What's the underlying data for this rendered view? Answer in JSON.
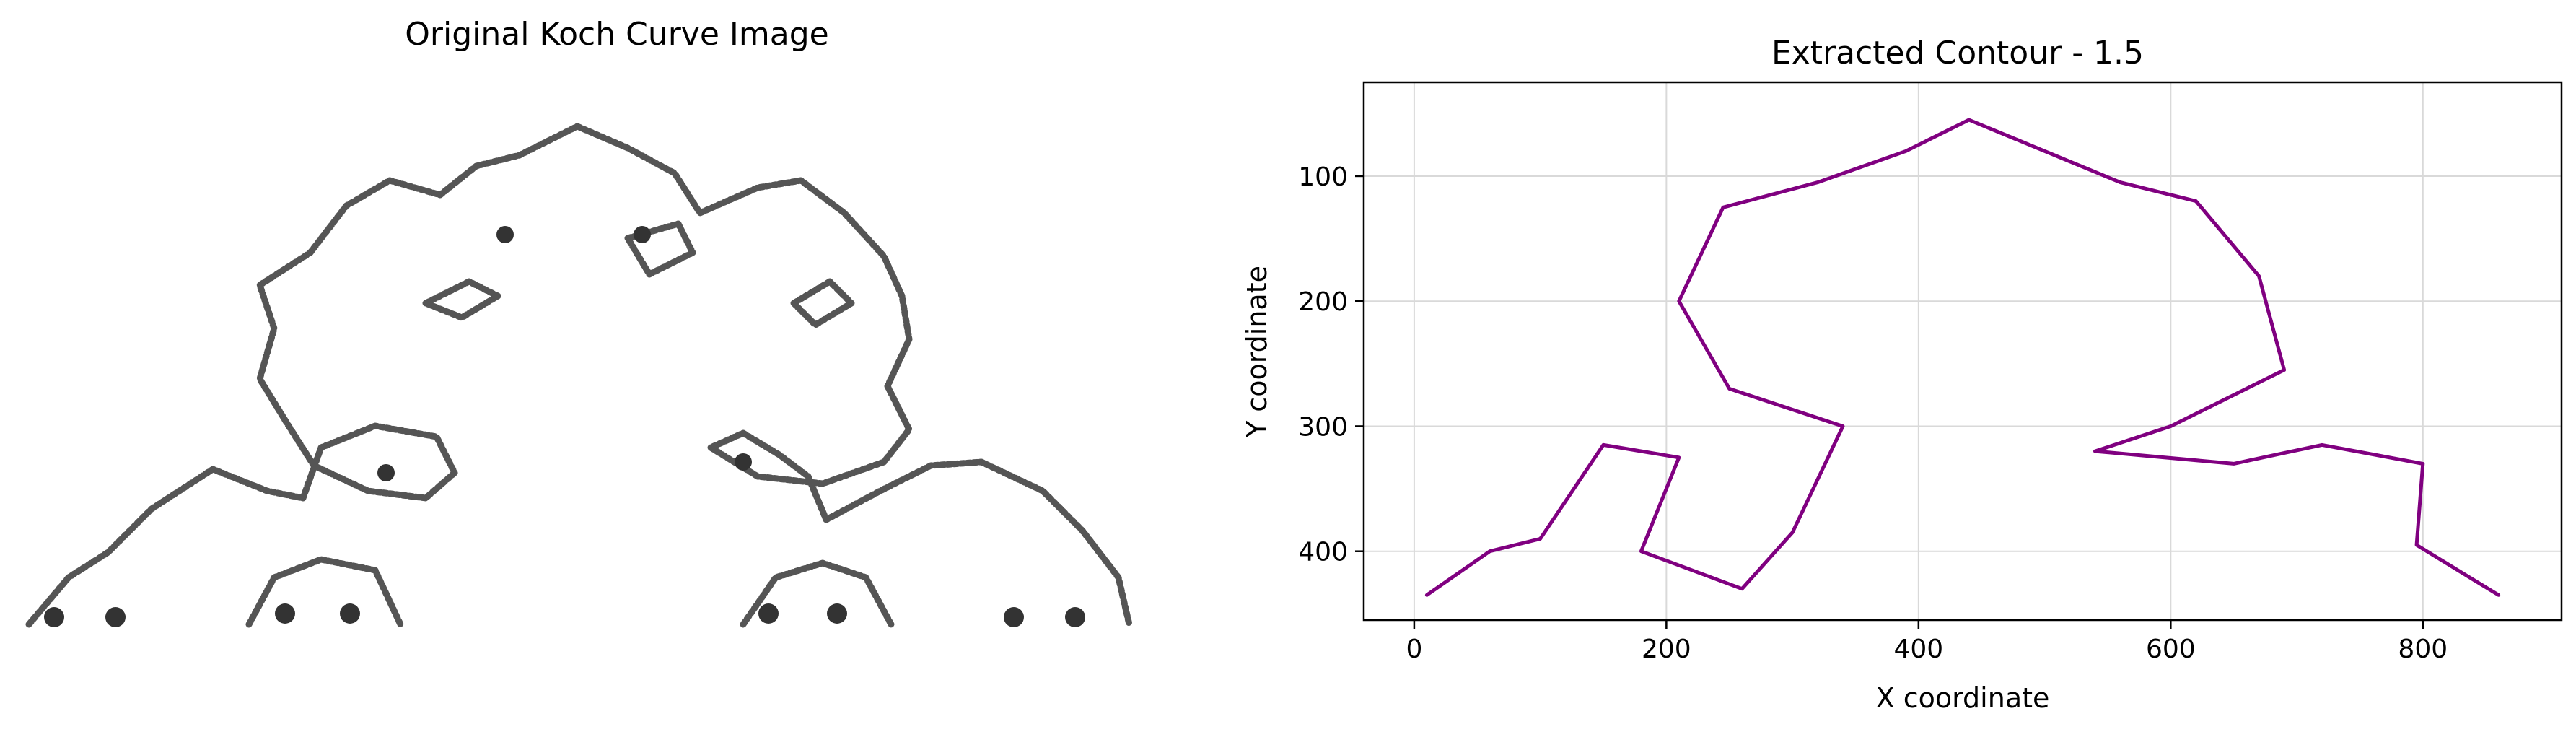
{
  "figure": {
    "left_panel": {
      "title": "Original Koch Curve Image",
      "image": "fractal-curve-image"
    },
    "right_panel": {
      "title": "Extracted Contour - 1.5"
    }
  },
  "chart_data": [
    {
      "type": "line",
      "title": "Extracted Contour - 1.5",
      "xlabel": "X coordinate",
      "ylabel": "Y coordinate",
      "xlim": [
        -40,
        910
      ],
      "ylim": [
        455,
        25
      ],
      "y_inverted": true,
      "xticks": [
        0,
        200,
        400,
        600,
        800
      ],
      "yticks": [
        100,
        200,
        300,
        400
      ],
      "grid": true,
      "legend": "none",
      "line_color": "#800080",
      "series": [
        {
          "points": [
            [
              10,
              435
            ],
            [
              60,
              400
            ],
            [
              100,
              390
            ],
            [
              150,
              315
            ],
            [
              210,
              325
            ],
            [
              180,
              400
            ],
            [
              260,
              430
            ],
            [
              300,
              385
            ],
            [
              340,
              300
            ],
            [
              250,
              270
            ],
            [
              210,
              200
            ],
            [
              245,
              125
            ],
            [
              320,
              105
            ],
            [
              390,
              80
            ],
            [
              440,
              55
            ],
            [
              500,
              80
            ],
            [
              560,
              105
            ],
            [
              620,
              120
            ],
            [
              670,
              180
            ],
            [
              690,
              255
            ],
            [
              600,
              300
            ],
            [
              540,
              320
            ],
            [
              650,
              330
            ],
            [
              720,
              315
            ],
            [
              800,
              330
            ],
            [
              795,
              395
            ],
            [
              860,
              435
            ]
          ]
        }
      ]
    }
  ]
}
